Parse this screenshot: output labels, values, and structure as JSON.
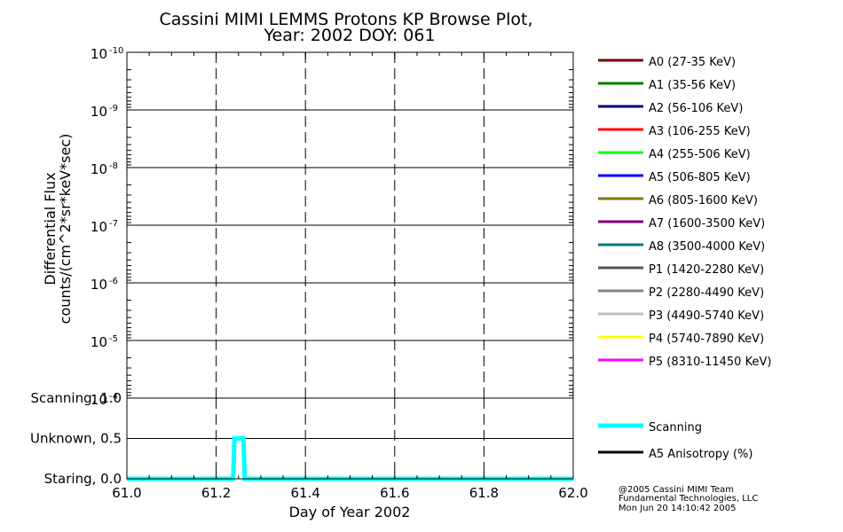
{
  "header": {
    "title_line1": "Cassini MIMI LEMMS Protons KP Browse Plot,",
    "title_line2": "Year: 2002 DOY: 061"
  },
  "chart_data": [
    {
      "type": "line",
      "name": "flux-panel",
      "ylabel_line1": "Differential Flux",
      "ylabel_line2": "counts/(cm^2*sr*keV*sec)",
      "yscale": "log",
      "yaxis_inverted": true,
      "y_ticks": [
        {
          "base": "10",
          "exp": "-10",
          "value": 1e-10
        },
        {
          "base": "10",
          "exp": "-9",
          "value": 1e-09
        },
        {
          "base": "10",
          "exp": "-8",
          "value": 1e-08
        },
        {
          "base": "10",
          "exp": "-7",
          "value": 1e-07
        },
        {
          "base": "10",
          "exp": "-6",
          "value": 1e-06
        },
        {
          "base": "10",
          "exp": "-5",
          "value": 1e-05
        },
        {
          "base": "10",
          "exp": "-4",
          "value": 0.0001
        }
      ],
      "xlim": [
        61.0,
        62.0
      ],
      "x_gridlines": [
        61.2,
        61.4,
        61.6,
        61.8
      ],
      "grid": true,
      "series": [
        {
          "name": "A0 (27-35 KeV)",
          "color": "#7a0000",
          "values": []
        },
        {
          "name": "A1 (35-56 KeV)",
          "color": "#007a00",
          "values": []
        },
        {
          "name": "A2 (56-106 KeV)",
          "color": "#00007a",
          "values": []
        },
        {
          "name": "A3 (106-255 KeV)",
          "color": "#ff0000",
          "values": []
        },
        {
          "name": "A4 (255-506 KeV)",
          "color": "#00ff00",
          "values": []
        },
        {
          "name": "A5 (506-805 KeV)",
          "color": "#0000ff",
          "values": []
        },
        {
          "name": "A6 (805-1600 KeV)",
          "color": "#807800",
          "values": []
        },
        {
          "name": "A7 (1600-3500 KeV)",
          "color": "#7a007a",
          "values": []
        },
        {
          "name": "A8 (3500-4000 KeV)",
          "color": "#007a7a",
          "values": []
        },
        {
          "name": "P1 (1420-2280 KeV)",
          "color": "#555555",
          "values": []
        },
        {
          "name": "P2 (2280-4490 KeV)",
          "color": "#808080",
          "values": []
        },
        {
          "name": "P3 (4490-5740 KeV)",
          "color": "#bfbfbf",
          "values": []
        },
        {
          "name": "P4 (5740-7890 KeV)",
          "color": "#ffff00",
          "values": []
        },
        {
          "name": "P5 (8310-11450 KeV)",
          "color": "#ff00ff",
          "values": []
        }
      ],
      "legend": "right"
    },
    {
      "type": "line",
      "name": "scanning-panel",
      "xlabel": "Day of Year 2002",
      "xlim": [
        61.0,
        62.0
      ],
      "ylim": [
        0.0,
        1.0
      ],
      "x_ticks": [
        "61.0",
        "61.2",
        "61.4",
        "61.6",
        "61.8",
        "62.0"
      ],
      "x_tick_values": [
        61.0,
        61.2,
        61.4,
        61.6,
        61.8,
        62.0
      ],
      "y_ticks": [
        {
          "label": "Scanning, 1.0",
          "value": 1.0
        },
        {
          "label": "Unknown, 0.5",
          "value": 0.5
        },
        {
          "label": "Staring, 0.0",
          "value": 0.0
        }
      ],
      "x_gridlines": [
        61.2,
        61.4,
        61.6,
        61.8
      ],
      "y_gridlines": [
        0.5
      ],
      "series": [
        {
          "name": "Scanning",
          "color": "#00ffff",
          "x": [
            61.0,
            61.238,
            61.241,
            61.244,
            61.258,
            61.261,
            61.264,
            62.0
          ],
          "y": [
            0.0,
            0.0,
            0.5,
            0.5,
            0.5,
            0.5,
            0.0,
            0.0
          ]
        },
        {
          "name": "A5 Anisotropy (%)",
          "color": "#000000",
          "x": [],
          "y": []
        }
      ],
      "legend": "right"
    }
  ],
  "credit": {
    "line1": "@2005 Cassini MIMI Team",
    "line2": "Fundamental Technologies, LLC",
    "line3": "Mon Jun 20 14:10:42 2005"
  }
}
